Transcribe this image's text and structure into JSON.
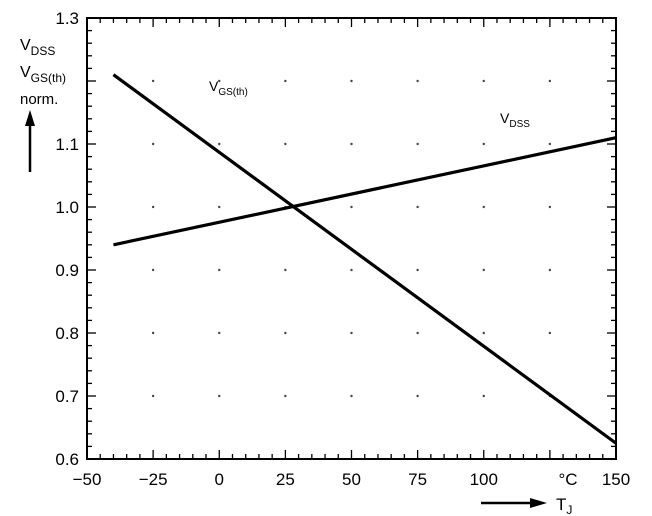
{
  "chart_data": {
    "type": "line",
    "title": "",
    "xlabel_main": "T",
    "xlabel_sub": "J",
    "x_unit": "°C",
    "ylabel_lines": [
      {
        "main": "V",
        "sub": "DSS"
      },
      {
        "main": "V",
        "sub": "GS(th)"
      },
      {
        "main": "norm.",
        "sub": ""
      }
    ],
    "xlim": [
      -50,
      150
    ],
    "ylim": [
      0.6,
      1.3
    ],
    "x_ticks": [
      -50,
      -25,
      0,
      25,
      50,
      75,
      100,
      125,
      150
    ],
    "x_tick_labels": [
      "−50",
      "−25",
      "0",
      "25",
      "50",
      "75",
      "100",
      "",
      "150"
    ],
    "y_ticks": [
      0.6,
      0.7,
      0.8,
      0.9,
      1.0,
      1.1,
      1.3
    ],
    "y_tick_labels": [
      "0.6",
      "0.7",
      "0.8",
      "0.9",
      "1.0",
      "1.1",
      "1.3"
    ],
    "grid": "dotted",
    "series": [
      {
        "name_main": "V",
        "name_sub": "GS(th)",
        "x": [
          -40,
          150
        ],
        "y": [
          1.21,
          0.625
        ]
      },
      {
        "name_main": "V",
        "name_sub": "DSS",
        "x": [
          -40,
          150
        ],
        "y": [
          0.94,
          1.11
        ]
      }
    ]
  }
}
